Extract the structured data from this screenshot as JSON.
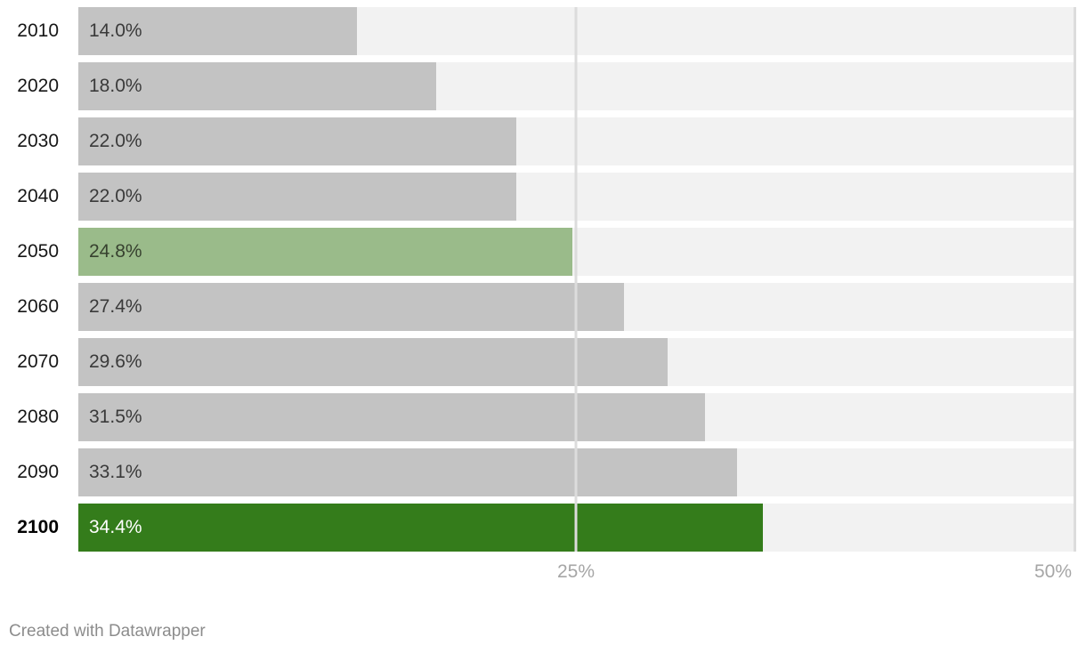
{
  "chart_data": {
    "type": "bar",
    "orientation": "horizontal",
    "title": "",
    "xlabel": "",
    "ylabel": "",
    "xlim": [
      0,
      50
    ],
    "grid": "vertical",
    "categories": [
      "2010",
      "2020",
      "2030",
      "2040",
      "2050",
      "2060",
      "2070",
      "2080",
      "2090",
      "2100"
    ],
    "values": [
      14.0,
      18.0,
      22.0,
      22.0,
      24.8,
      27.4,
      29.6,
      31.5,
      33.1,
      34.4
    ],
    "rows": [
      {
        "category": "2010",
        "value": 14.0,
        "label": "14.0%",
        "bar_color": "#c3c3c3",
        "value_color": "#3a3a3a",
        "bold": false
      },
      {
        "category": "2020",
        "value": 18.0,
        "label": "18.0%",
        "bar_color": "#c3c3c3",
        "value_color": "#3a3a3a",
        "bold": false
      },
      {
        "category": "2030",
        "value": 22.0,
        "label": "22.0%",
        "bar_color": "#c3c3c3",
        "value_color": "#3a3a3a",
        "bold": false
      },
      {
        "category": "2040",
        "value": 22.0,
        "label": "22.0%",
        "bar_color": "#c3c3c3",
        "value_color": "#3a3a3a",
        "bold": false
      },
      {
        "category": "2050",
        "value": 24.8,
        "label": "24.8%",
        "bar_color": "#9abb8a",
        "value_color": "#37412f",
        "bold": false
      },
      {
        "category": "2060",
        "value": 27.4,
        "label": "27.4%",
        "bar_color": "#c3c3c3",
        "value_color": "#3a3a3a",
        "bold": false
      },
      {
        "category": "2070",
        "value": 29.6,
        "label": "29.6%",
        "bar_color": "#c3c3c3",
        "value_color": "#3a3a3a",
        "bold": false
      },
      {
        "category": "2080",
        "value": 31.5,
        "label": "31.5%",
        "bar_color": "#c3c3c3",
        "value_color": "#3a3a3a",
        "bold": false
      },
      {
        "category": "2090",
        "value": 33.1,
        "label": "33.1%",
        "bar_color": "#c3c3c3",
        "value_color": "#3a3a3a",
        "bold": false
      },
      {
        "category": "2100",
        "value": 34.4,
        "label": "34.4%",
        "bar_color": "#347c1b",
        "value_color": "#ffffff",
        "bold": true
      }
    ],
    "x_ticks": [
      {
        "label": "25%",
        "value": 25
      },
      {
        "label": "50%",
        "value": 50
      }
    ],
    "legend": null
  },
  "colors": {
    "bar_default": "#c3c3c3",
    "bar_highlight_2050": "#9abb8a",
    "bar_highlight_2100": "#347c1b",
    "track_background": "#f2f2f2",
    "gridline": "#dcdcdc",
    "category_label": "#161616",
    "tick_label": "#a6a6a6",
    "footer_text": "#8c8c8c"
  },
  "footer": {
    "attribution": "Created with Datawrapper"
  }
}
